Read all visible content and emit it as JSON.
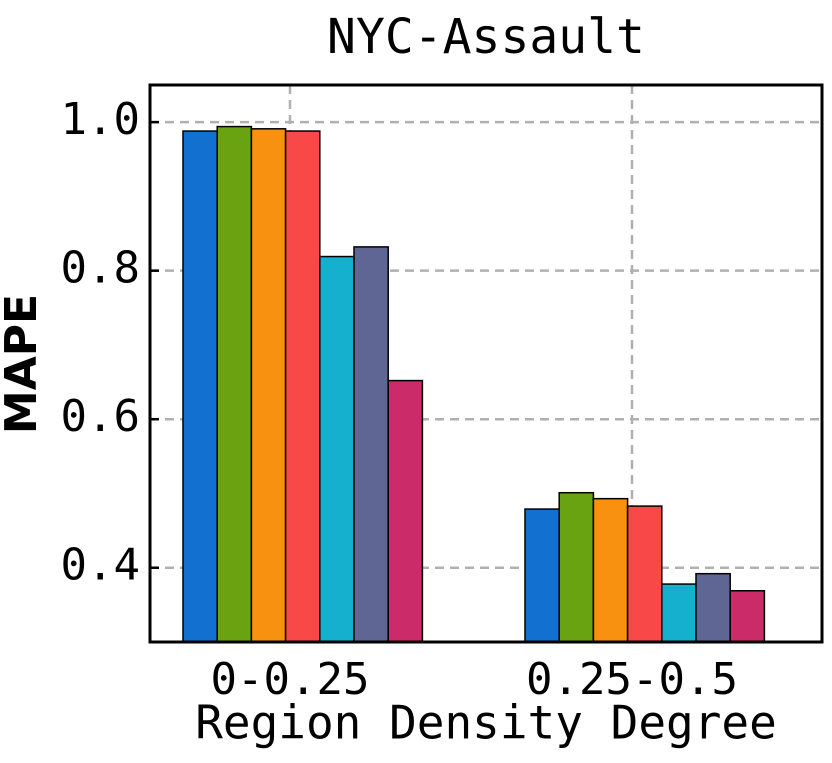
{
  "chart_data": {
    "type": "bar",
    "title": "NYC-Assault",
    "x_label": "Region Density Degree",
    "y_label": "MAPE",
    "categories": [
      "0-0.25",
      "0.25-0.5"
    ],
    "series": [
      {
        "color": "#1170d0",
        "values": [
          0.988,
          0.479
        ]
      },
      {
        "color": "#6aa312",
        "values": [
          0.994,
          0.501
        ]
      },
      {
        "color": "#f7910f",
        "values": [
          0.991,
          0.493
        ]
      },
      {
        "color": "#f94848",
        "values": [
          0.988,
          0.483
        ]
      },
      {
        "color": "#16b0cf",
        "values": [
          0.819,
          0.378
        ]
      },
      {
        "color": "#5f6693",
        "values": [
          0.832,
          0.392
        ]
      },
      {
        "color": "#cc2b6a",
        "values": [
          0.652,
          0.369
        ]
      }
    ],
    "ylim": [
      0.3,
      1.05
    ],
    "yticks": [
      {
        "value": 0.4,
        "label": "0.4"
      },
      {
        "value": 0.6,
        "label": "0.6"
      },
      {
        "value": 0.8,
        "label": "0.8"
      },
      {
        "value": 1.0,
        "label": "1.0"
      }
    ],
    "grid": true
  }
}
